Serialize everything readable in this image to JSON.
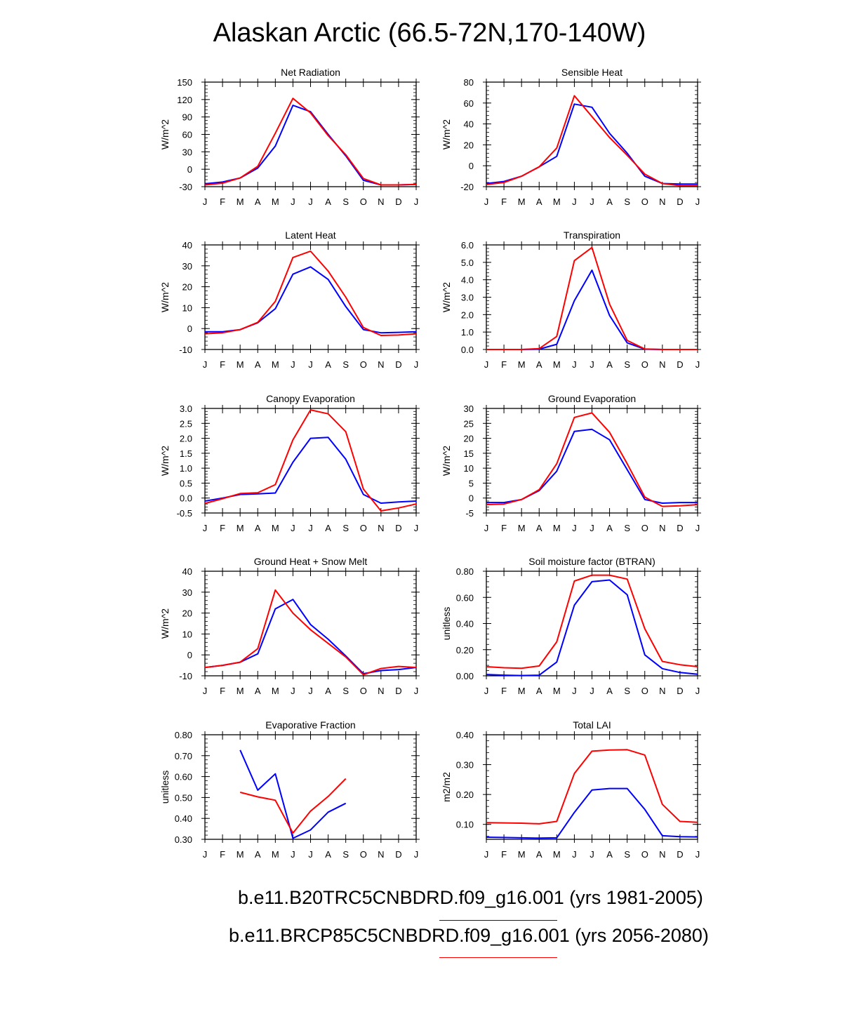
{
  "page": {
    "title": "Alaskan Arctic (66.5-72N,170-140W)"
  },
  "legend": {
    "entries": [
      {
        "label": "b.e11.B20TRC5CNBDRD.f09_g16.001 (yrs 1981-2005)",
        "color": "#0000ff"
      },
      {
        "label": "b.e11.BRCP85C5CNBDRD.f09_g16.001 (yrs 2056-2080)",
        "color": "#ff0000"
      }
    ]
  },
  "chart_data": [
    {
      "type": "line",
      "title": "Net Radiation",
      "ylabel": "W/m^2",
      "categories": [
        "J",
        "F",
        "M",
        "A",
        "M",
        "J",
        "J",
        "A",
        "S",
        "O",
        "N",
        "D",
        "J"
      ],
      "ylim": [
        -30,
        150
      ],
      "yticks": [
        -30,
        0,
        30,
        60,
        90,
        120,
        150
      ],
      "ytick_labels": [
        "-30",
        "0",
        "30",
        "60",
        "90",
        "120",
        "150"
      ],
      "series": [
        {
          "color": "#0000ff",
          "values": [
            -25,
            -22,
            -15,
            2,
            40,
            110,
            99,
            60,
            23,
            -19,
            -27,
            -27,
            -26
          ]
        },
        {
          "color": "#ff0000",
          "values": [
            -27,
            -24,
            -15,
            5,
            62,
            122,
            97,
            58,
            25,
            -16,
            -27,
            -27,
            -26
          ]
        }
      ]
    },
    {
      "type": "line",
      "title": "Sensible Heat",
      "ylabel": "W/m^2",
      "categories": [
        "J",
        "F",
        "M",
        "A",
        "M",
        "J",
        "J",
        "A",
        "S",
        "O",
        "N",
        "D",
        "J"
      ],
      "ylim": [
        -20,
        80
      ],
      "yticks": [
        -20,
        0,
        20,
        40,
        60,
        80
      ],
      "ytick_labels": [
        "-20",
        "0",
        "20",
        "40",
        "60",
        "80"
      ],
      "series": [
        {
          "color": "#0000ff",
          "values": [
            -17,
            -15,
            -10,
            -1,
            9,
            59,
            56,
            31,
            12,
            -10,
            -17,
            -17.5,
            -17.5
          ]
        },
        {
          "color": "#ff0000",
          "values": [
            -18,
            -16,
            -10,
            -1,
            17,
            67,
            47,
            27,
            10,
            -8,
            -17,
            -19,
            -19
          ]
        }
      ]
    },
    {
      "type": "line",
      "title": "Latent Heat",
      "ylabel": "W/m^2",
      "categories": [
        "J",
        "F",
        "M",
        "A",
        "M",
        "J",
        "J",
        "A",
        "S",
        "O",
        "N",
        "D",
        "J"
      ],
      "ylim": [
        -10,
        40
      ],
      "yticks": [
        -10,
        0,
        10,
        20,
        30,
        40
      ],
      "ytick_labels": [
        "-10",
        "0",
        "10",
        "20",
        "30",
        "40"
      ],
      "series": [
        {
          "color": "#0000ff",
          "values": [
            -1.5,
            -1.5,
            -0.5,
            2.8,
            9.5,
            26,
            29.5,
            23.5,
            10.5,
            -0.5,
            -2,
            -1.8,
            -1.5
          ]
        },
        {
          "color": "#ff0000",
          "values": [
            -2.5,
            -2,
            -0.5,
            3,
            13,
            34,
            37,
            27.5,
            15,
            0.5,
            -3.3,
            -3.1,
            -2.5
          ]
        }
      ]
    },
    {
      "type": "line",
      "title": "Transpiration",
      "ylabel": "W/m^2",
      "categories": [
        "J",
        "F",
        "M",
        "A",
        "M",
        "J",
        "J",
        "A",
        "S",
        "O",
        "N",
        "D",
        "J"
      ],
      "ylim": [
        0,
        6
      ],
      "yticks": [
        0,
        1,
        2,
        3,
        4,
        5,
        6
      ],
      "ytick_labels": [
        "0.0",
        "1.0",
        "2.0",
        "3.0",
        "4.0",
        "5.0",
        "6.0"
      ],
      "series": [
        {
          "color": "#0000ff",
          "values": [
            0,
            0,
            0,
            0.02,
            0.3,
            2.8,
            4.55,
            1.95,
            0.38,
            0.02,
            0,
            0,
            0
          ]
        },
        {
          "color": "#ff0000",
          "values": [
            0,
            0,
            0,
            0.05,
            0.75,
            5.1,
            5.85,
            2.6,
            0.52,
            0.03,
            0,
            0,
            0
          ]
        }
      ]
    },
    {
      "type": "line",
      "title": "Canopy Evaporation",
      "ylabel": "W/m^2",
      "categories": [
        "J",
        "F",
        "M",
        "A",
        "M",
        "J",
        "J",
        "A",
        "S",
        "O",
        "N",
        "D",
        "J"
      ],
      "ylim": [
        -0.5,
        3.0
      ],
      "yticks": [
        -0.5,
        0,
        0.5,
        1.0,
        1.5,
        2.0,
        2.5,
        3.0
      ],
      "ytick_labels": [
        "-0.5",
        "0.0",
        "0.5",
        "1.0",
        "1.5",
        "2.0",
        "2.5",
        "3.0"
      ],
      "series": [
        {
          "color": "#0000ff",
          "values": [
            -0.1,
            0,
            0.12,
            0.14,
            0.17,
            1.2,
            2.0,
            2.03,
            1.3,
            0.12,
            -0.17,
            -0.13,
            -0.1
          ]
        },
        {
          "color": "#ff0000",
          "values": [
            -0.18,
            -0.02,
            0.15,
            0.18,
            0.45,
            1.95,
            2.95,
            2.82,
            2.22,
            0.3,
            -0.43,
            -0.33,
            -0.2
          ]
        }
      ]
    },
    {
      "type": "line",
      "title": "Ground Evaporation",
      "ylabel": "W/m^2",
      "categories": [
        "J",
        "F",
        "M",
        "A",
        "M",
        "J",
        "J",
        "A",
        "S",
        "O",
        "N",
        "D",
        "J"
      ],
      "ylim": [
        -5,
        30
      ],
      "yticks": [
        -5,
        0,
        5,
        10,
        15,
        20,
        25,
        30
      ],
      "ytick_labels": [
        "-5",
        "0",
        "5",
        "10",
        "15",
        "20",
        "25",
        "30"
      ],
      "series": [
        {
          "color": "#0000ff",
          "values": [
            -1.5,
            -1.5,
            -0.5,
            2.5,
            9,
            22.3,
            23,
            19.5,
            9.5,
            -0.5,
            -1.7,
            -1.5,
            -1.5
          ]
        },
        {
          "color": "#ff0000",
          "values": [
            -2.2,
            -2,
            -0.5,
            2.8,
            11.5,
            27,
            28.5,
            22,
            11.5,
            0.3,
            -2.8,
            -2.6,
            -2.2
          ]
        }
      ]
    },
    {
      "type": "line",
      "title": "Ground Heat + Snow Melt",
      "ylabel": "W/m^2",
      "categories": [
        "J",
        "F",
        "M",
        "A",
        "M",
        "J",
        "J",
        "A",
        "S",
        "O",
        "N",
        "D",
        "J"
      ],
      "ylim": [
        -10,
        40
      ],
      "yticks": [
        -10,
        0,
        10,
        20,
        30,
        40
      ],
      "ytick_labels": [
        "-10",
        "0",
        "10",
        "20",
        "30",
        "40"
      ],
      "series": [
        {
          "color": "#0000ff",
          "values": [
            -6,
            -5,
            -3.5,
            0.5,
            22,
            26.5,
            14.5,
            7.5,
            -0.5,
            -9,
            -7.5,
            -7,
            -6
          ]
        },
        {
          "color": "#ff0000",
          "values": [
            -6,
            -5,
            -3.5,
            3,
            31,
            20,
            12,
            5.5,
            -1,
            -9.5,
            -6.5,
            -5.5,
            -6
          ]
        }
      ]
    },
    {
      "type": "line",
      "title": "Soil moisture factor (BTRAN)",
      "ylabel": "unitless",
      "categories": [
        "J",
        "F",
        "M",
        "A",
        "M",
        "J",
        "J",
        "A",
        "S",
        "O",
        "N",
        "D",
        "J"
      ],
      "ylim": [
        0,
        0.8
      ],
      "yticks": [
        0,
        0.2,
        0.4,
        0.6,
        0.8
      ],
      "ytick_labels": [
        "0.00",
        "0.20",
        "0.40",
        "0.60",
        "0.80"
      ],
      "series": [
        {
          "color": "#0000ff",
          "values": [
            0.01,
            0.005,
            0.002,
            0.005,
            0.105,
            0.54,
            0.72,
            0.733,
            0.62,
            0.16,
            0.055,
            0.025,
            0.012
          ]
        },
        {
          "color": "#ff0000",
          "values": [
            0.07,
            0.062,
            0.058,
            0.075,
            0.26,
            0.725,
            0.77,
            0.77,
            0.74,
            0.36,
            0.11,
            0.085,
            0.07
          ]
        }
      ]
    },
    {
      "type": "line",
      "title": "Evaporative Fraction",
      "ylabel": "unitless",
      "categories": [
        "J",
        "F",
        "M",
        "A",
        "M",
        "J",
        "J",
        "A",
        "S",
        "O",
        "N",
        "D",
        "J"
      ],
      "ylim": [
        0.3,
        0.8
      ],
      "yticks": [
        0.3,
        0.4,
        0.5,
        0.6,
        0.7,
        0.8
      ],
      "ytick_labels": [
        "0.30",
        "0.40",
        "0.50",
        "0.60",
        "0.70",
        "0.80"
      ],
      "series": [
        {
          "color": "#0000ff",
          "values": [
            null,
            null,
            0.727,
            0.535,
            0.613,
            0.305,
            0.345,
            0.43,
            0.472,
            null,
            null,
            null,
            null
          ]
        },
        {
          "color": "#ff0000",
          "values": [
            null,
            null,
            0.525,
            0.503,
            0.487,
            0.33,
            0.435,
            0.505,
            0.59,
            null,
            null,
            null,
            null
          ]
        }
      ]
    },
    {
      "type": "line",
      "title": "Total LAI",
      "ylabel": "m2/m2",
      "categories": [
        "J",
        "F",
        "M",
        "A",
        "M",
        "J",
        "J",
        "A",
        "S",
        "O",
        "N",
        "D",
        "J"
      ],
      "ylim": [
        0.05,
        0.4
      ],
      "yticks": [
        0.1,
        0.2,
        0.3,
        0.4
      ],
      "ytick_labels": [
        "0.10",
        "0.20",
        "0.30",
        "0.40"
      ],
      "series": [
        {
          "color": "#0000ff",
          "values": [
            0.057,
            0.056,
            0.055,
            0.054,
            0.055,
            0.14,
            0.215,
            0.22,
            0.22,
            0.15,
            0.062,
            0.059,
            0.058
          ]
        },
        {
          "color": "#ff0000",
          "values": [
            0.106,
            0.105,
            0.104,
            0.102,
            0.11,
            0.27,
            0.345,
            0.349,
            0.35,
            0.332,
            0.167,
            0.11,
            0.107
          ]
        }
      ]
    }
  ]
}
